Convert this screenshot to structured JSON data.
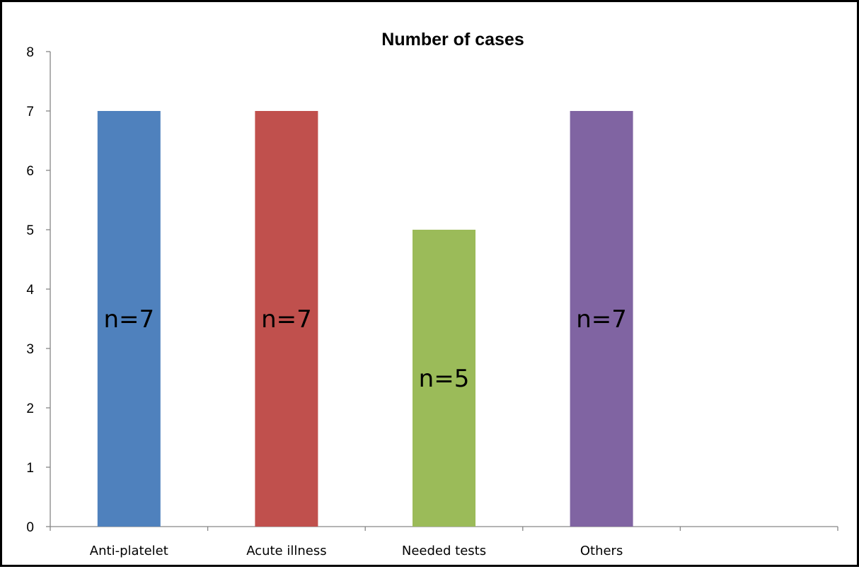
{
  "chart_data": {
    "type": "bar",
    "title": "Number of cases",
    "categories": [
      "Anti-platelet",
      "Acute illness",
      "Needed tests",
      "Others",
      ""
    ],
    "values": [
      7,
      7,
      5,
      7,
      null
    ],
    "data_labels": [
      "n=7",
      "n=7",
      "n=5",
      "n=7",
      ""
    ],
    "colors": [
      "#4F81BD",
      "#C0504D",
      "#9BBB59",
      "#8064A2"
    ],
    "ylim": [
      0,
      8
    ],
    "yticks": [
      0,
      1,
      2,
      3,
      4,
      5,
      6,
      7,
      8
    ],
    "xlabel": "",
    "ylabel": "",
    "grid": false,
    "legend": "none"
  }
}
